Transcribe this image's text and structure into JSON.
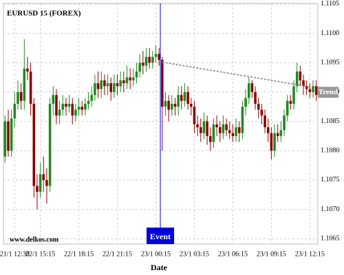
{
  "chart_data": {
    "type": "candlestick",
    "title": "EURUSD 15 (FOREX)",
    "watermark": "www.delkos.com",
    "x_label": "Date",
    "up_color": "#1f8a1f",
    "down_color": "#8b0000",
    "grid": true,
    "categories": [
      null,
      null,
      null,
      "21/1 12:30",
      null,
      null,
      null,
      null,
      null,
      null,
      null,
      "22/1 15:15",
      null,
      null,
      null,
      null,
      null,
      null,
      null,
      null,
      null,
      null,
      null,
      "22/1 18:15",
      null,
      null,
      null,
      null,
      null,
      null,
      null,
      null,
      null,
      null,
      null,
      "22/1 21:15",
      null,
      null,
      null,
      null,
      null,
      null,
      null,
      null,
      null,
      null,
      null,
      "23/1 00:15",
      null,
      null,
      null,
      null,
      null,
      null,
      null,
      null,
      null,
      null,
      null,
      "23/1 03:15",
      null,
      null,
      null,
      null,
      null,
      null,
      null,
      null,
      null,
      null,
      null,
      "23/1 06:15",
      null,
      null,
      null,
      null,
      null,
      null,
      null,
      null,
      null,
      null,
      null,
      "23/1 09:15",
      null,
      null,
      null,
      null,
      null,
      null,
      null,
      null,
      null,
      null,
      null,
      "23/1 12:15",
      null,
      null
    ],
    "open": [
      1.1079,
      1.1085,
      1.108,
      1.10855,
      1.1088,
      1.109,
      1.10885,
      1.1094,
      1.10935,
      1.1088,
      1.1074,
      1.1073,
      1.1076,
      1.1075,
      1.1074,
      1.1088,
      1.10895,
      1.1086,
      1.1087,
      1.1088,
      1.10875,
      1.1088,
      1.1086,
      1.1087,
      1.10875,
      1.1087,
      1.1088,
      1.10885,
      1.10895,
      1.10915,
      1.10905,
      1.1092,
      1.1091,
      1.10915,
      1.109,
      1.10915,
      1.1091,
      1.1092,
      1.10915,
      1.10925,
      1.1092,
      1.10925,
      1.10935,
      1.1095,
      1.10945,
      1.1096,
      1.1095,
      1.1096,
      1.10965,
      1.10955,
      1.10875,
      1.10885,
      1.1087,
      1.1088,
      1.10875,
      1.10895,
      1.10885,
      1.109,
      1.1088,
      1.10875,
      1.10845,
      1.1084,
      1.1083,
      1.1085,
      1.10825,
      1.10815,
      1.10845,
      1.1084,
      1.1083,
      1.10845,
      1.10835,
      1.1083,
      1.10825,
      1.1084,
      1.1083,
      1.10875,
      1.1089,
      1.10915,
      1.109,
      1.1088,
      1.1087,
      1.1086,
      1.1084,
      1.1083,
      1.108,
      1.1083,
      1.10825,
      1.10835,
      1.1086,
      1.10885,
      1.1088,
      1.1091,
      1.10935,
      1.1092,
      1.1091,
      1.10905,
      1.109,
      1.1091
    ],
    "high": [
      1.1086,
      1.1087,
      1.1087,
      1.109,
      1.1092,
      1.10915,
      1.1099,
      1.1096,
      1.1095,
      1.1089,
      1.1076,
      1.1078,
      1.1079,
      1.1077,
      1.1089,
      1.1091,
      1.10905,
      1.10885,
      1.10895,
      1.1089,
      1.10895,
      1.1089,
      1.1088,
      1.1089,
      1.10885,
      1.1089,
      1.109,
      1.1091,
      1.1093,
      1.10935,
      1.10935,
      1.1093,
      1.1093,
      1.10925,
      1.1093,
      1.1093,
      1.10935,
      1.10935,
      1.10945,
      1.1094,
      1.1094,
      1.1095,
      1.10965,
      1.1097,
      1.10975,
      1.10975,
      1.1097,
      1.1098,
      1.10975,
      1.1096,
      1.109,
      1.10895,
      1.10895,
      1.1089,
      1.1091,
      1.1091,
      1.10915,
      1.1091,
      1.1089,
      1.10885,
      1.1086,
      1.10855,
      1.10865,
      1.1086,
      1.1084,
      1.10855,
      1.1086,
      1.1085,
      1.1086,
      1.10855,
      1.1085,
      1.10845,
      1.10855,
      1.1085,
      1.10885,
      1.10905,
      1.10925,
      1.1092,
      1.1091,
      1.1089,
      1.1088,
      1.1087,
      1.10855,
      1.1084,
      1.10845,
      1.10845,
      1.1085,
      1.1087,
      1.10895,
      1.10895,
      1.1092,
      1.1095,
      1.10945,
      1.1093,
      1.1092,
      1.10915,
      1.1092,
      1.1092
    ],
    "low": [
      1.1078,
      1.1079,
      1.1079,
      1.1084,
      1.1087,
      1.1087,
      1.1087,
      1.1092,
      1.1086,
      1.1072,
      1.107,
      1.1072,
      1.1073,
      1.1071,
      1.1073,
      1.1086,
      1.10845,
      1.10845,
      1.1086,
      1.1086,
      1.10865,
      1.10845,
      1.1085,
      1.1086,
      1.1086,
      1.1086,
      1.1087,
      1.10875,
      1.10885,
      1.1089,
      1.1089,
      1.10895,
      1.10895,
      1.10885,
      1.1089,
      1.10895,
      1.109,
      1.109,
      1.10905,
      1.10905,
      1.1091,
      1.10915,
      1.10925,
      1.1093,
      1.10935,
      1.1094,
      1.1094,
      1.1095,
      1.10945,
      1.108,
      1.1086,
      1.1085,
      1.1086,
      1.1086,
      1.1086,
      1.1087,
      1.10875,
      1.1087,
      1.1086,
      1.1083,
      1.10825,
      1.10815,
      1.1082,
      1.1081,
      1.108,
      1.10805,
      1.10825,
      1.10815,
      1.1082,
      1.10825,
      1.1082,
      1.10815,
      1.10815,
      1.10815,
      1.1082,
      1.1086,
      1.1088,
      1.1089,
      1.1087,
      1.10855,
      1.10845,
      1.1083,
      1.10815,
      1.10785,
      1.1079,
      1.10815,
      1.10815,
      1.10825,
      1.1085,
      1.1087,
      1.1087,
      1.109,
      1.1091,
      1.10895,
      1.10895,
      1.1089,
      1.1089,
      1.10885
    ],
    "close": [
      1.1085,
      1.108,
      1.10855,
      1.1088,
      1.109,
      1.10885,
      1.1094,
      1.10935,
      1.1088,
      1.1074,
      1.1073,
      1.1076,
      1.1075,
      1.1074,
      1.1088,
      1.10895,
      1.1086,
      1.1087,
      1.1088,
      1.10875,
      1.1088,
      1.1086,
      1.1087,
      1.10875,
      1.1087,
      1.1088,
      1.10885,
      1.10895,
      1.10915,
      1.10905,
      1.1092,
      1.1091,
      1.10915,
      1.109,
      1.10915,
      1.1091,
      1.1092,
      1.10915,
      1.10925,
      1.1092,
      1.10925,
      1.10935,
      1.1095,
      1.10945,
      1.1096,
      1.1095,
      1.1096,
      1.10965,
      1.10955,
      1.10875,
      1.10885,
      1.1087,
      1.1088,
      1.10875,
      1.10895,
      1.10885,
      1.109,
      1.1088,
      1.10875,
      1.10845,
      1.1084,
      1.1083,
      1.1085,
      1.10825,
      1.10815,
      1.10845,
      1.1084,
      1.1083,
      1.10845,
      1.10835,
      1.1083,
      1.10825,
      1.1084,
      1.1083,
      1.10875,
      1.1089,
      1.10915,
      1.109,
      1.1088,
      1.1087,
      1.1086,
      1.1084,
      1.1083,
      1.108,
      1.1083,
      1.10825,
      1.10835,
      1.1086,
      1.10885,
      1.1088,
      1.1091,
      1.10935,
      1.1092,
      1.1091,
      1.10905,
      1.109,
      1.1091,
      1.10895
    ],
    "ylim": [
      1.10641,
      1.11051
    ],
    "yticks": [
      1.1065,
      {
        "value": 1.107,
        "label": "1.1070"
      },
      1.1075,
      {
        "value": 1.108,
        "label": "1.1080"
      },
      1.1085,
      {
        "value": 1.109,
        "label": "1.1090"
      },
      1.1095,
      {
        "value": 1.11,
        "label": "1.1100"
      },
      1.1105
    ],
    "event": {
      "label": "Event",
      "index": 48,
      "color": "#0000dd"
    },
    "trend": {
      "label": "Trend",
      "color": "#999999",
      "start_index": 49,
      "end_index": 95,
      "values": [
        1.10951,
        1.10909
      ]
    }
  }
}
